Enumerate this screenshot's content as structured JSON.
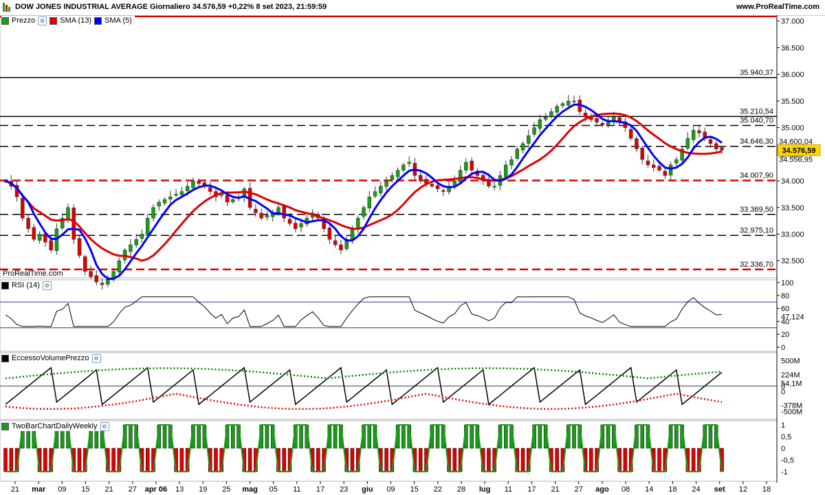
{
  "header": {
    "title": "DOW JONES INDUSTRIAL AVERAGE Giornaliero 34.576,59 +0,22% 8 set 2023, 21:59:59",
    "site": "www.ProRealTime.com"
  },
  "price_panel": {
    "legend": [
      {
        "label": "Prezzo",
        "color": "#1a9c1a"
      },
      {
        "label": "SMA (13)",
        "color": "#e00000"
      },
      {
        "label": "SMA (5)",
        "color": "#0000ff"
      }
    ],
    "watermark": "ProRealTime.com",
    "y_ticks": [
      "37.000",
      "36.500",
      "36.000",
      "35.500",
      "35.000",
      "34.500",
      "34.000",
      "33.500",
      "33.000",
      "32.500"
    ],
    "levels": [
      {
        "label": "35.940,37",
        "value": 35940.37,
        "style": "solid",
        "color": "#000000"
      },
      {
        "label": "35.210,54",
        "value": 35210.54,
        "style": "solid",
        "color": "#000000"
      },
      {
        "label": "35.040,70",
        "value": 35040.7,
        "style": "dashed",
        "color": "#000000"
      },
      {
        "label": "34.646,30",
        "value": 34646.3,
        "style": "dashed",
        "color": "#000000"
      },
      {
        "label": "34.007,90",
        "value": 34007.9,
        "style": "dashed",
        "color": "#e00000"
      },
      {
        "label": "33.369,50",
        "value": 33369.5,
        "style": "dashed",
        "color": "#000000"
      },
      {
        "label": "32.975,10",
        "value": 32975.1,
        "style": "dashed",
        "color": "#000000"
      },
      {
        "label": "32.336,70",
        "value": 32336.7,
        "style": "dashed",
        "color": "#e00000"
      }
    ],
    "current_price_label": "34.576,59",
    "sma5_label": "34.600,04",
    "sma13_label": "34.556,95"
  },
  "rsi_panel": {
    "legend": "RSI (14)",
    "y_ticks": [
      "100",
      "80",
      "60",
      "40",
      "20",
      "0"
    ],
    "value_label": "47,124",
    "upper_band": 70,
    "lower_band": 30
  },
  "volume_panel": {
    "legend": "EccessoVolumePrezzo",
    "y_ticks": [
      "500M",
      "0",
      "-500M"
    ],
    "labels": [
      {
        "text": "224M",
        "color": "#008000"
      },
      {
        "text": "54,1M",
        "color": "#000000"
      },
      {
        "text": "0",
        "color": "#000000"
      },
      {
        "text": "-378M",
        "color": "#e00000"
      }
    ]
  },
  "twobar_panel": {
    "legend": "TwoBarChartDailyWeekly",
    "y_ticks": [
      "1",
      "0,5",
      "0",
      "-0,5",
      "-1"
    ]
  },
  "x_axis": {
    "labels": [
      "21",
      "mar",
      "09",
      "15",
      "21",
      "27",
      "apr 06",
      "13",
      "19",
      "25",
      "mag",
      "05",
      "11",
      "17",
      "23",
      "giu",
      "09",
      "15",
      "22",
      "28",
      "lug",
      "11",
      "17",
      "21",
      "27",
      "ago",
      "08",
      "14",
      "18",
      "24",
      "set",
      "12",
      "18"
    ]
  },
  "chart_data": {
    "type": "candlestick",
    "title": "DOW JONES INDUSTRIAL AVERAGE Giornaliero",
    "ylim": [
      32180,
      37100
    ],
    "close": [
      34000,
      33900,
      33700,
      33300,
      33100,
      32900,
      33000,
      32850,
      32700,
      33100,
      33300,
      33500,
      32900,
      32600,
      32300,
      32200,
      32100,
      32050,
      32150,
      32300,
      32500,
      32700,
      32800,
      32900,
      33000,
      33300,
      33500,
      33600,
      33650,
      33700,
      33750,
      33800,
      33900,
      34000,
      33950,
      33900,
      33800,
      33700,
      33750,
      33600,
      33650,
      33700,
      33850,
      33500,
      33400,
      33300,
      33350,
      33400,
      33500,
      33300,
      33200,
      33100,
      33200,
      33300,
      33400,
      33300,
      33100,
      32900,
      32800,
      32700,
      32900,
      33100,
      33300,
      33500,
      33700,
      33800,
      33900,
      34000,
      34100,
      34200,
      34300,
      34350,
      34100,
      34000,
      33950,
      33900,
      33850,
      33800,
      33900,
      34000,
      34200,
      34350,
      34200,
      34100,
      34000,
      33900,
      33900,
      34100,
      34300,
      34400,
      34600,
      34700,
      34850,
      35000,
      35150,
      35200,
      35300,
      35400,
      35450,
      35500,
      35500,
      35300,
      35200,
      35150,
      35100,
      35050,
      35100,
      35200,
      35100,
      35000,
      34800,
      34600,
      34400,
      34300,
      34250,
      34200,
      34100,
      34300,
      34400,
      34600,
      34800,
      34950,
      34900,
      34800,
      34700,
      34600,
      34576.59
    ],
    "sma5_color": "#0000ff",
    "sma13_color": "#e00000"
  }
}
